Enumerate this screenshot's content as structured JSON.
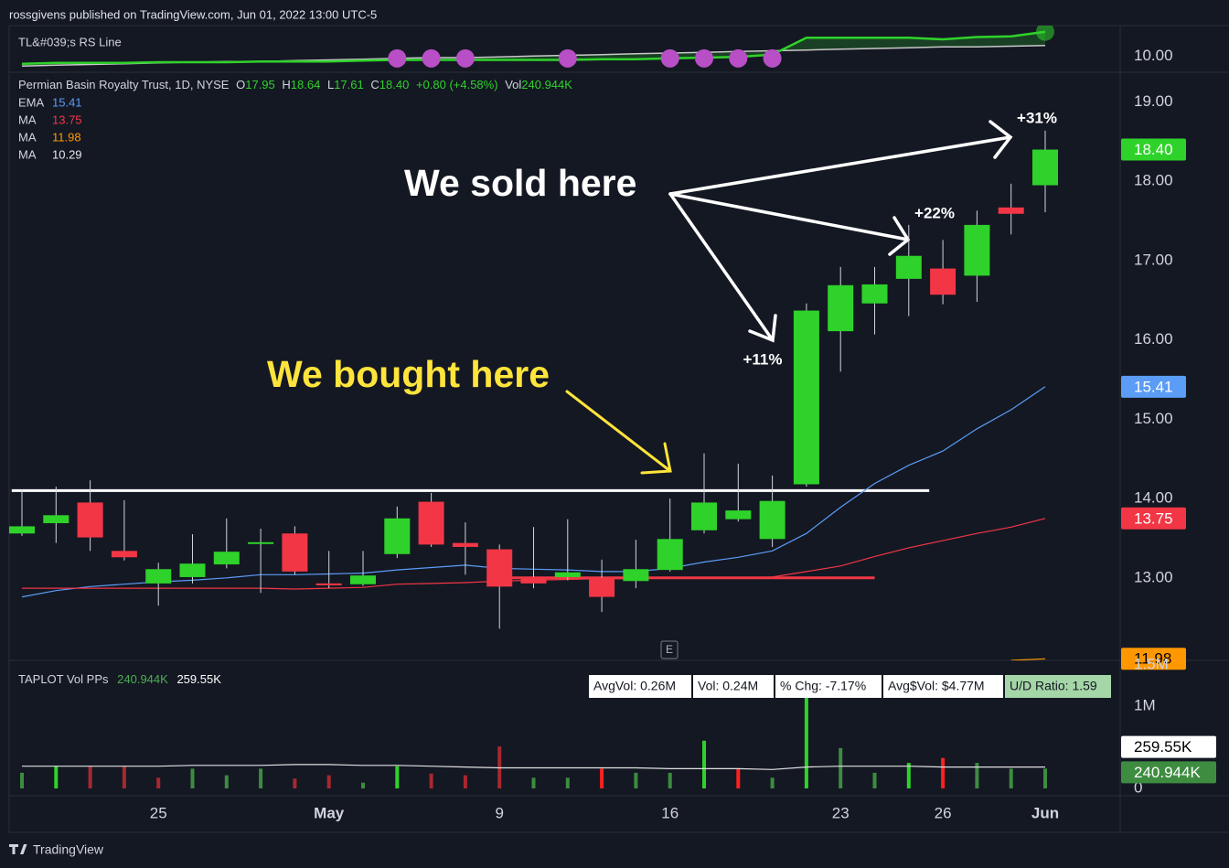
{
  "header": "rossgivens published on TradingView.com, Jun 01, 2022 13:00 UTC-5",
  "footer": "TradingView",
  "chart_data": [
    {
      "type": "line",
      "title": "TL&#039;s RS Line",
      "ylim": [
        9.8,
        10.4
      ],
      "yticks": [
        {
          "value": 10,
          "label": "10.00"
        }
      ],
      "series": [
        {
          "color": "#2fd22a",
          "values": [
            9.9,
            9.91,
            9.91,
            9.91,
            9.92,
            9.92,
            9.92,
            9.93,
            9.93,
            9.93,
            9.94,
            9.95,
            9.95,
            9.95,
            9.95,
            9.95,
            9.95,
            9.96,
            9.96,
            9.97,
            9.98,
            9.99,
            10.02,
            10.24,
            10.24,
            10.24,
            10.24,
            10.22,
            10.25,
            10.26,
            10.32
          ]
        },
        {
          "color": "#c8c8c8",
          "values": [
            9.87,
            9.88,
            9.89,
            9.9,
            9.91,
            9.92,
            9.93,
            9.93,
            9.94,
            9.95,
            9.96,
            9.97,
            9.98,
            9.98,
            9.99,
            10.0,
            10.01,
            10.02,
            10.03,
            10.04,
            10.05,
            10.06,
            10.07,
            10.08,
            10.09,
            10.1,
            10.11,
            10.12,
            10.12,
            10.13,
            10.14
          ]
        }
      ],
      "dots": {
        "color": "#b84fc7",
        "values": [
          null,
          null,
          null,
          null,
          null,
          null,
          null,
          null,
          null,
          null,
          null,
          9.97,
          9.97,
          9.97,
          null,
          null,
          9.97,
          null,
          null,
          9.97,
          9.97,
          9.97,
          9.97,
          null,
          null,
          null,
          null,
          null,
          null,
          null,
          null
        ]
      }
    },
    {
      "type": "candlestick",
      "title": "Permian Basin Royalty Trust, 1D, NYSE",
      "quote": [
        {
          "key": "O",
          "value": "17.95"
        },
        {
          "key": "H",
          "value": "18.64"
        },
        {
          "key": "L",
          "value": "17.61"
        },
        {
          "key": "C",
          "value": "18.40"
        }
      ],
      "change": "+0.80 (+4.58%)",
      "volume": {
        "key": "Vol",
        "value": "240.944K"
      },
      "categories": [
        null,
        null,
        null,
        null,
        "25",
        null,
        null,
        null,
        null,
        "May",
        null,
        null,
        null,
        null,
        "9",
        null,
        null,
        null,
        null,
        "16",
        null,
        null,
        null,
        null,
        "23",
        null,
        null,
        "26",
        null,
        null,
        "Jun"
      ],
      "open": [
        13.56,
        13.69,
        13.95,
        13.34,
        12.93,
        13.01,
        13.17,
        13.43,
        13.56,
        12.93,
        12.92,
        13.3,
        13.96,
        13.44,
        13.36,
        13.01,
        13.01,
        13.0,
        12.96,
        13.1,
        13.6,
        13.74,
        13.49,
        14.18,
        16.11,
        16.46,
        16.77,
        16.9,
        16.81,
        17.67,
        17.95
      ],
      "high": [
        14.11,
        14.15,
        14.23,
        13.98,
        13.19,
        13.55,
        13.75,
        13.62,
        13.65,
        13.34,
        13.34,
        13.9,
        14.07,
        13.7,
        13.42,
        13.64,
        13.74,
        13.23,
        13.48,
        14.0,
        14.57,
        14.44,
        14.29,
        16.46,
        16.92,
        16.92,
        17.45,
        17.26,
        17.63,
        17.97,
        18.64
      ],
      "low": [
        13.53,
        13.44,
        13.34,
        13.22,
        12.65,
        12.93,
        13.12,
        12.81,
        13.04,
        12.87,
        12.9,
        13.25,
        13.39,
        13.04,
        12.36,
        12.87,
        12.97,
        12.57,
        12.87,
        13.08,
        13.56,
        13.71,
        13.39,
        14.15,
        15.6,
        16.07,
        16.3,
        16.45,
        16.48,
        17.33,
        17.61
      ],
      "close": [
        13.65,
        13.79,
        13.51,
        13.26,
        13.11,
        13.18,
        13.33,
        13.45,
        13.08,
        12.91,
        13.03,
        13.75,
        13.42,
        13.39,
        12.89,
        12.93,
        13.07,
        12.76,
        13.11,
        13.49,
        13.95,
        13.85,
        13.97,
        16.37,
        16.69,
        16.7,
        17.06,
        16.57,
        17.45,
        17.59,
        18.4
      ],
      "up_color": "#2fd22a",
      "down_color": "#f23645",
      "ylim": [
        11.96,
        19.34
      ],
      "yticks": [
        {
          "value": 13,
          "label": "13.00"
        },
        {
          "value": 14,
          "label": "14.00"
        },
        {
          "value": 15,
          "label": "15.00"
        },
        {
          "value": 16,
          "label": "16.00"
        },
        {
          "value": 17,
          "label": "17.00"
        },
        {
          "value": 18,
          "label": "18.00"
        },
        {
          "value": 19,
          "label": "19.00"
        }
      ],
      "series": [
        {
          "name": "EMA",
          "value": 15.41,
          "color": "#5b9cf6",
          "values": [
            12.76,
            12.84,
            12.89,
            12.92,
            12.95,
            12.97,
            13.0,
            13.04,
            13.04,
            13.05,
            13.06,
            13.1,
            13.13,
            13.16,
            13.12,
            13.11,
            13.1,
            13.08,
            13.08,
            13.12,
            13.2,
            13.26,
            13.34,
            13.56,
            13.89,
            14.19,
            14.42,
            14.6,
            14.88,
            15.12,
            15.41
          ]
        },
        {
          "name": "MA",
          "value": 13.75,
          "color": "#f23645",
          "values": [
            12.87,
            12.87,
            12.87,
            12.87,
            12.87,
            12.87,
            12.87,
            12.87,
            12.86,
            12.87,
            12.88,
            12.92,
            12.93,
            12.94,
            12.96,
            12.97,
            12.98,
            12.99,
            12.99,
            13.0,
            13.0,
            13.0,
            13.01,
            13.08,
            13.15,
            13.27,
            13.38,
            13.47,
            13.56,
            13.64,
            13.75
          ]
        },
        {
          "name": "MA",
          "value": 11.98,
          "color": "#ff9800",
          "values": [
            null,
            null,
            null,
            null,
            null,
            null,
            null,
            null,
            null,
            null,
            null,
            null,
            null,
            null,
            null,
            null,
            null,
            null,
            null,
            null,
            null,
            null,
            null,
            null,
            null,
            null,
            null,
            null,
            null,
            11.96,
            11.98
          ]
        },
        {
          "name": "MA",
          "value": 10.29,
          "color": "#e8e8e8"
        }
      ],
      "price_labels": [
        {
          "value": 18.4,
          "label": "18.40",
          "color": "#2fd22a",
          "text_color": "#ffffff"
        },
        {
          "value": 15.41,
          "label": "15.41",
          "color": "#5b9cf6",
          "text_color": "#ffffff"
        },
        {
          "value": 13.75,
          "label": "13.75",
          "color": "#f23645",
          "text_color": "#ffffff"
        },
        {
          "value": 11.98,
          "label": "11.98",
          "color": "#ff9800",
          "text_color": "#000000"
        }
      ],
      "levels": [
        {
          "value": 14.1,
          "color": "#ffffff"
        },
        {
          "value": 13.0,
          "color": "#f23645"
        }
      ],
      "annotations": {
        "sold": "We sold here",
        "bought": "We bought here",
        "gains": [
          "+11%",
          "+22%",
          "+31%"
        ]
      },
      "earnings": "E"
    },
    {
      "type": "bar",
      "title": "TAPLOT Vol PPs",
      "values": [
        0.19,
        0.27,
        0.27,
        0.27,
        0.13,
        0.24,
        0.16,
        0.24,
        0.12,
        0.16,
        0.07,
        0.27,
        0.18,
        0.16,
        0.51,
        0.13,
        0.13,
        0.24,
        0.19,
        0.19,
        0.58,
        0.24,
        0.13,
        1.13,
        0.49,
        0.19,
        0.31,
        0.37,
        0.31,
        0.24,
        0.240944
      ],
      "colors": [
        "#3d8c40",
        "#2fd22a",
        "#a7282f",
        "#a7282f",
        "#a7282f",
        "#3d8c40",
        "#3d8c40",
        "#3d8c40",
        "#a7282f",
        "#a7282f",
        "#3d8c40",
        "#2fd22a",
        "#a7282f",
        "#a7282f",
        "#a7282f",
        "#3d8c40",
        "#3d8c40",
        "#ff2020",
        "#3d8c40",
        "#3d8c40",
        "#2fd22a",
        "#ff2020",
        "#3d8c40",
        "#2fd22a",
        "#3d8c40",
        "#3d8c40",
        "#2fd22a",
        "#ff2020",
        "#3d8c40",
        "#3d8c40",
        "#3d8c40"
      ],
      "average": {
        "color": "#e0e0e0",
        "values": [
          0.27,
          0.27,
          0.27,
          0.27,
          0.27,
          0.28,
          0.28,
          0.28,
          0.29,
          0.29,
          0.28,
          0.28,
          0.27,
          0.26,
          0.25,
          0.25,
          0.25,
          0.25,
          0.25,
          0.24,
          0.24,
          0.24,
          0.23,
          0.26,
          0.27,
          0.27,
          0.27,
          0.26,
          0.26,
          0.26,
          0.25955
        ]
      },
      "ylim": [
        0,
        1.556
      ],
      "yticks": [
        {
          "value": 0,
          "label": "0"
        },
        {
          "value": 1,
          "label": "1M"
        },
        {
          "value": 1.5,
          "label": "1.5M"
        }
      ],
      "price_labels": [
        {
          "value": 0.25955,
          "label": "259.55K",
          "color": "#ffffff",
          "text_color": "#000000"
        },
        {
          "value": 0.240944,
          "label": "240.944K",
          "color": "#3d8c40",
          "text_color": "#ffffff"
        }
      ],
      "stats": [
        "AvgVol: 0.26M",
        "Vol: 0.24M",
        "% Chg: -7.17%",
        "Avg$Vol: $4.77M",
        "U/D Ratio: 1.59"
      ]
    }
  ]
}
